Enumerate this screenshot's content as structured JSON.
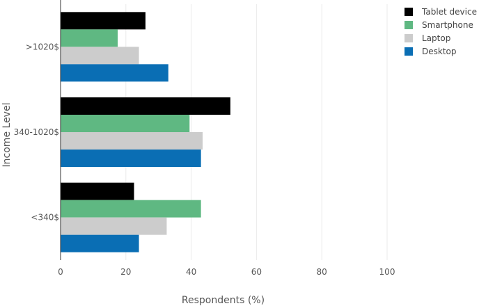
{
  "chart_data": {
    "type": "bar",
    "orientation": "horizontal",
    "title": "",
    "xlabel": "Respondents (%)",
    "ylabel": "Income Level",
    "xlim": [
      0,
      100
    ],
    "x_ticks": [
      0,
      20,
      40,
      60,
      80,
      100
    ],
    "categories": [
      ">1020$",
      "340-1020$",
      "<340$"
    ],
    "series": [
      {
        "name": "Tablet device",
        "color": "#000000",
        "values": [
          26,
          52,
          22.5
        ]
      },
      {
        "name": "Smartphone",
        "color": "#5fb882",
        "values": [
          17.5,
          39.5,
          43
        ]
      },
      {
        "name": "Laptop",
        "color": "#cccccc",
        "values": [
          24,
          43.5,
          32.5
        ]
      },
      {
        "name": "Desktop",
        "color": "#0a6eb4",
        "values": [
          33,
          43,
          24
        ]
      }
    ],
    "legend_position": "top-right",
    "grid": true
  }
}
